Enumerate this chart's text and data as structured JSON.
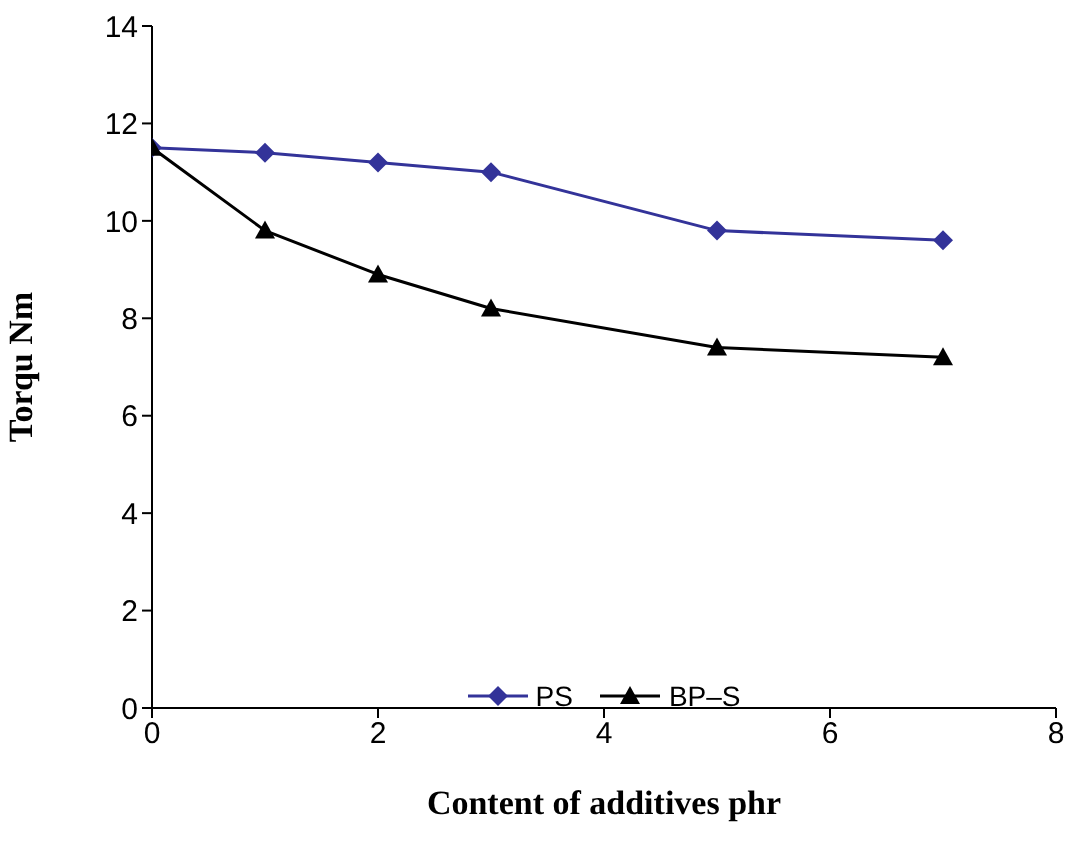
{
  "chart_data": {
    "type": "line",
    "xlabel": "Content of additives   phr",
    "ylabel": "Torqu   Nm",
    "x": [
      0,
      1,
      2,
      3,
      5,
      7
    ],
    "series": [
      {
        "name": "PS",
        "color": "#333399",
        "values": [
          11.5,
          11.4,
          11.2,
          11.0,
          9.8,
          9.6
        ],
        "marker": "diamond"
      },
      {
        "name": "BP–S",
        "color": "#000000",
        "values": [
          11.5,
          9.8,
          8.9,
          8.2,
          7.4,
          7.2
        ],
        "marker": "triangle"
      }
    ],
    "xlim": [
      0,
      8
    ],
    "xticks": [
      0,
      2,
      4,
      6,
      8
    ],
    "ylim": [
      0,
      14
    ],
    "yticks": [
      0,
      2,
      4,
      6,
      8,
      10,
      12,
      14
    ],
    "grid": false,
    "legend": "bottom",
    "line_style": "solid"
  }
}
